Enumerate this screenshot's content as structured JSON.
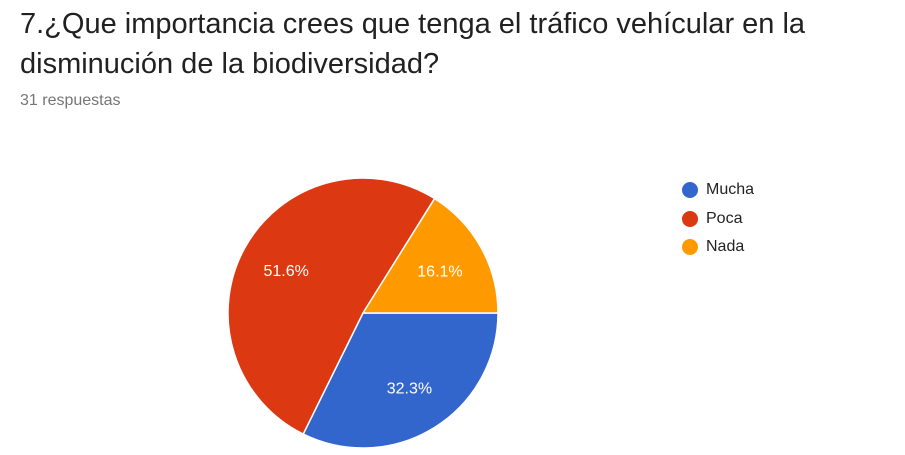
{
  "question": {
    "title": "7.¿Que importancia crees que tenga el tráfico vehícular en la disminución de la biodiversidad?",
    "responses": "31 respuestas"
  },
  "chart_data": {
    "type": "pie",
    "categories": [
      "Mucha",
      "Poca",
      "Nada"
    ],
    "values": [
      32.3,
      51.6,
      16.1
    ],
    "labels": [
      "32.3%",
      "51.6%",
      "16.1%"
    ],
    "colors": [
      "#3366cc",
      "#dc3912",
      "#ff9900"
    ],
    "legend_position": "right",
    "start_angle_deg": 90,
    "direction": "clockwise"
  }
}
